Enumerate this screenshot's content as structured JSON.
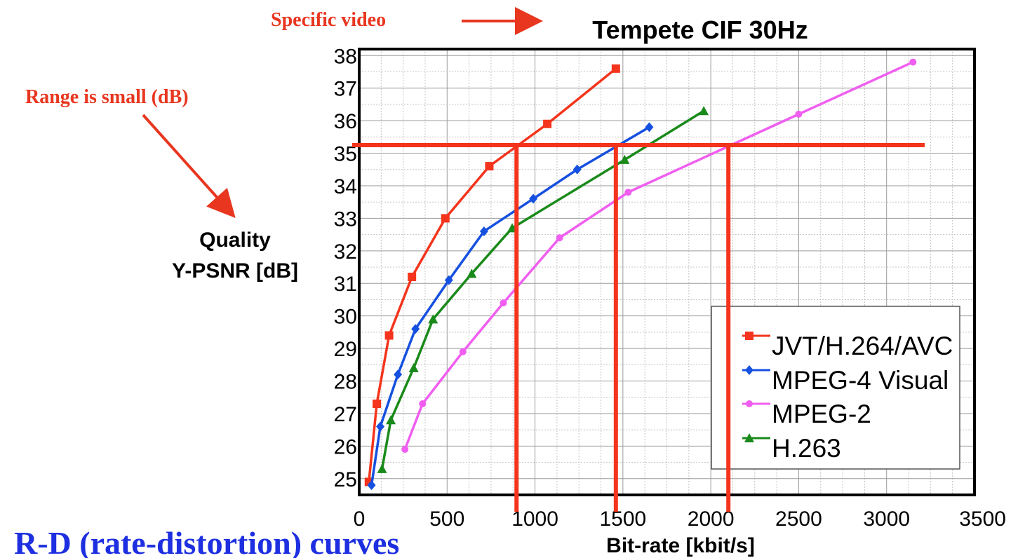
{
  "chart_data": {
    "type": "line",
    "title": "Tempete CIF 30Hz",
    "xlabel": "Bit-rate [kbit/s]",
    "ylabel_line1": "Quality",
    "ylabel_line2": "Y-PSNR [dB]",
    "xlim": [
      0,
      3500
    ],
    "ylim": [
      24.5,
      38.2
    ],
    "x_ticks": [
      0,
      500,
      1000,
      1500,
      2000,
      2500,
      3000,
      3500
    ],
    "y_ticks": [
      25,
      26,
      27,
      28,
      29,
      30,
      31,
      32,
      33,
      34,
      35,
      36,
      37,
      38
    ],
    "grid": true,
    "legend_position": "bottom-right",
    "series": [
      {
        "name": "JVT/H.264/AVC",
        "color": "#f4341c",
        "marker": "square",
        "x": [
          55,
          100,
          170,
          300,
          490,
          740,
          1070,
          1460
        ],
        "y": [
          24.9,
          27.3,
          29.4,
          31.2,
          33.0,
          34.6,
          35.9,
          37.6
        ]
      },
      {
        "name": "MPEG-4 Visual",
        "color": "#1650e0",
        "marker": "diamond",
        "x": [
          70,
          120,
          220,
          320,
          510,
          710,
          990,
          1240,
          1650
        ],
        "y": [
          24.8,
          26.6,
          28.2,
          29.6,
          31.1,
          32.6,
          33.6,
          34.5,
          35.8
        ]
      },
      {
        "name": "MPEG-2",
        "color": "#f05ef0",
        "marker": "circle",
        "x": [
          260,
          360,
          590,
          820,
          1140,
          1530,
          2500,
          3150
        ],
        "y": [
          25.9,
          27.3,
          28.9,
          30.4,
          32.4,
          33.8,
          36.2,
          37.8
        ]
      },
      {
        "name": "H.263",
        "color": "#1a8a1a",
        "marker": "triangle",
        "x": [
          130,
          180,
          310,
          420,
          640,
          870,
          1510,
          1960
        ],
        "y": [
          25.3,
          26.8,
          28.4,
          29.9,
          31.3,
          32.7,
          34.8,
          36.3
        ]
      }
    ],
    "reference_lines": {
      "color": "#f4341c",
      "horizontal_y": 35.25,
      "vertical_x": [
        895,
        1460,
        2100
      ]
    }
  },
  "annotations": {
    "specific_video": "Specific video",
    "range_small": "Range is small (dB)",
    "rd_curves": "R-D (rate-distortion) curves",
    "color": "#e8361f",
    "caption_color": "#1d2fe0"
  }
}
